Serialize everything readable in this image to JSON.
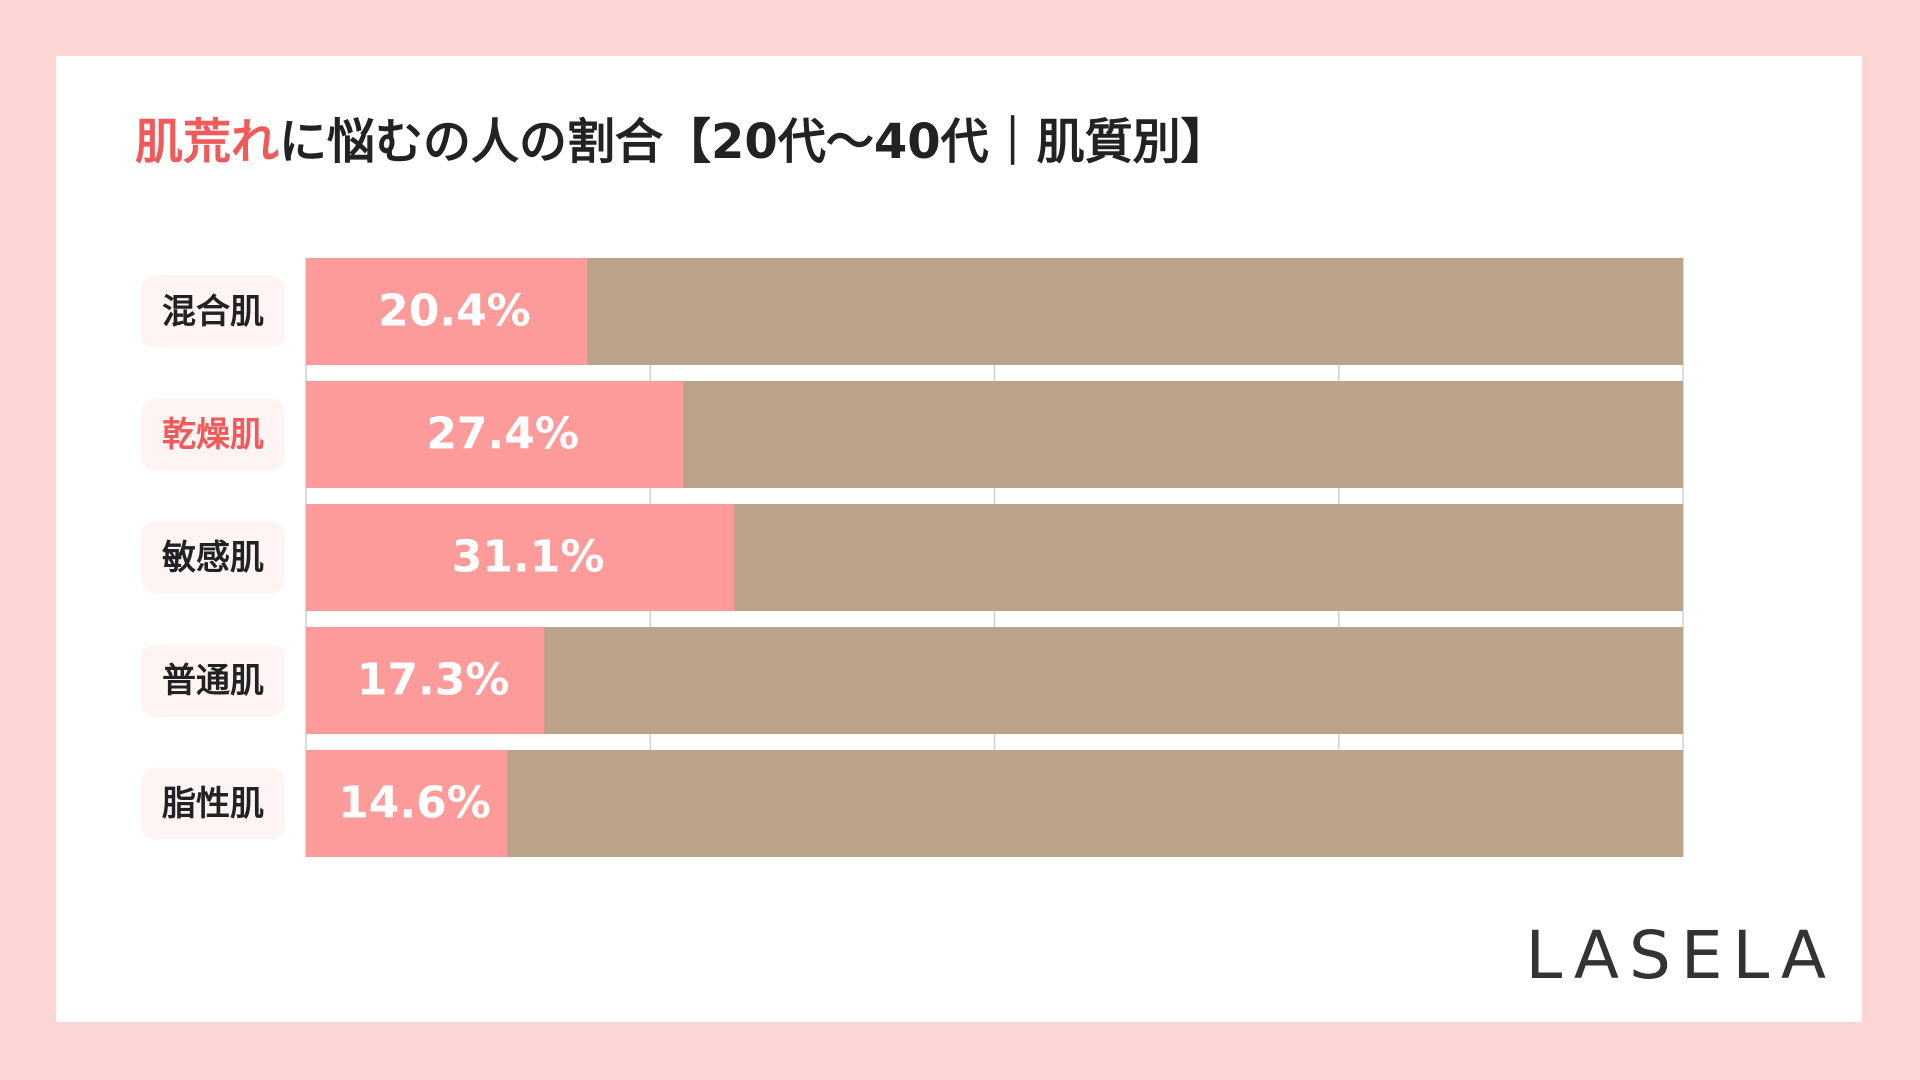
{
  "chart_data": {
    "type": "bar",
    "orientation": "horizontal",
    "title": {
      "highlight": "肌荒れ",
      "text": "に悩むの人の割合【20代〜40代｜肌質別】"
    },
    "categories": [
      "混合肌",
      "乾燥肌",
      "敏感肌",
      "普通肌",
      "脂性肌"
    ],
    "category_colors": [
      "#222222",
      "#f05a5a",
      "#222222",
      "#222222",
      "#222222"
    ],
    "values": [
      20.4,
      27.4,
      31.1,
      17.3,
      14.6
    ],
    "value_labels": [
      "20.4%",
      "27.4%",
      "31.1%",
      "17.3%",
      "14.6%"
    ],
    "color": "#fd9a9a",
    "track_color": "#bba38a",
    "xlim": [
      0,
      100
    ],
    "xticks": [
      0,
      25,
      50,
      75,
      100
    ],
    "grid": true,
    "brand": "LASELA"
  }
}
